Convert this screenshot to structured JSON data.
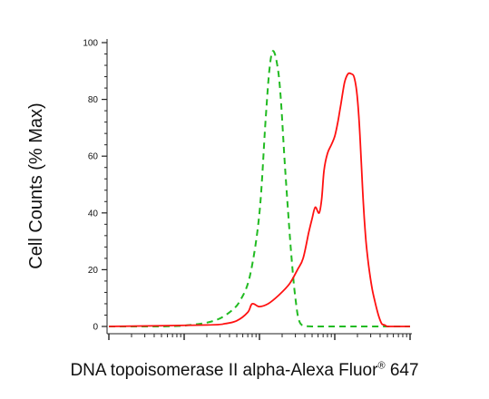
{
  "chart_data": {
    "type": "line",
    "ylabel": "Cell Counts (% Max)",
    "xlabel": {
      "main": "DNA topoisomerase II alpha-Alexa Fluor",
      "sup": "®",
      "tail": " 647"
    },
    "ylim": [
      0,
      100
    ],
    "yticks": [
      "0",
      "20",
      "40",
      "60",
      "80",
      "100"
    ],
    "xscale": "log",
    "xlim": [
      10,
      100000
    ],
    "grid": false,
    "legend": "none",
    "series": [
      {
        "style": "dashed",
        "color": "#22bb22",
        "x": [
          10,
          50,
          120,
          250,
          400,
          550,
          750,
          1000,
          1200,
          1350,
          1500,
          1700,
          1900,
          2200,
          2600,
          3000,
          3500,
          5000,
          20000,
          100000
        ],
        "y": [
          0,
          0,
          0.5,
          2,
          5,
          9,
          18,
          40,
          72,
          90,
          97,
          93,
          82,
          55,
          28,
          10,
          1,
          0,
          0,
          0
        ]
      },
      {
        "style": "solid",
        "color": "#ff1111",
        "x": [
          10,
          200,
          350,
          500,
          700,
          800,
          1000,
          1300,
          1800,
          2500,
          3200,
          3800,
          4500,
          5000,
          5500,
          6200,
          6700,
          7200,
          8000,
          9000,
          10000,
          11000,
          12000,
          13500,
          15000,
          16500,
          18000,
          19500,
          21000,
          22500,
          24000,
          26000,
          28000,
          31000,
          34000,
          38000,
          42000,
          46000,
          50000,
          55000,
          60000,
          70000,
          80000,
          100000
        ],
        "y": [
          0,
          0.5,
          1,
          2,
          5,
          8,
          7,
          8,
          11,
          15,
          20,
          24,
          33,
          38,
          42,
          40,
          45,
          55,
          61,
          64,
          67,
          72,
          78,
          86,
          89,
          89,
          88,
          83,
          73,
          58,
          43,
          30,
          22,
          14,
          9,
          4,
          1,
          0.5,
          0,
          0,
          0,
          0,
          0,
          0
        ]
      }
    ]
  }
}
